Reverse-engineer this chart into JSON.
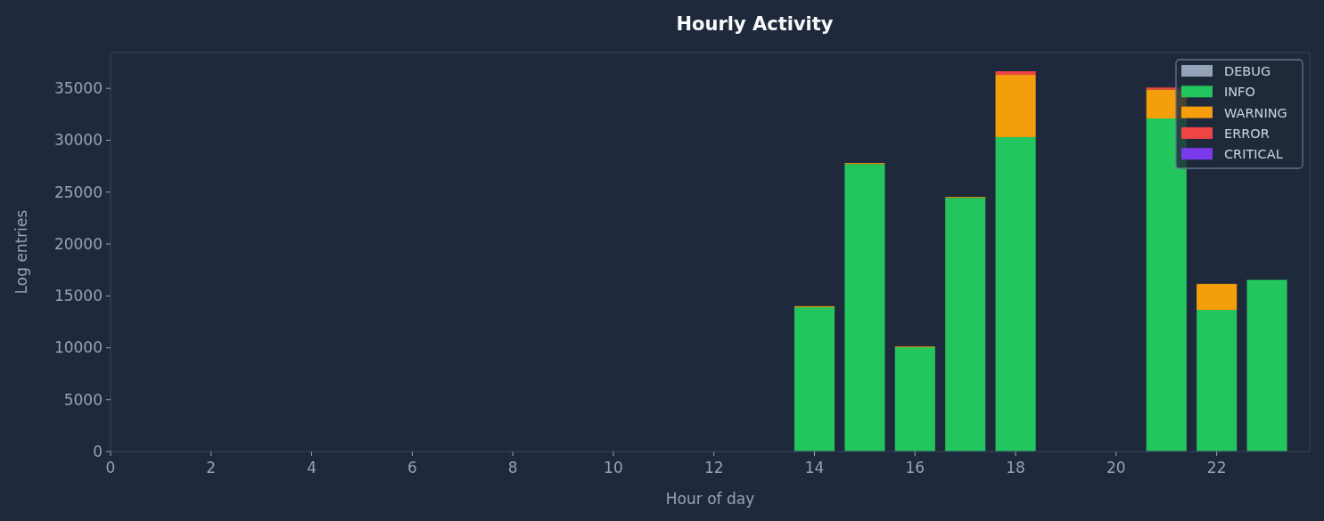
{
  "chart_data": {
    "type": "bar",
    "title": "Hourly Activity",
    "xlabel": "Hour of day",
    "ylabel": "Log entries",
    "stacked": true,
    "x": [
      14,
      15,
      16,
      17,
      18,
      21,
      22,
      23
    ],
    "series": [
      {
        "name": "DEBUG",
        "color": "#94a3b8",
        "values": [
          0,
          0,
          0,
          0,
          0,
          0,
          0,
          0
        ]
      },
      {
        "name": "INFO",
        "color": "#22c55e",
        "values": [
          13900,
          27700,
          10050,
          24450,
          30300,
          32100,
          13650,
          16550
        ]
      },
      {
        "name": "WARNING",
        "color": "#f59e0b",
        "values": [
          100,
          100,
          80,
          80,
          6000,
          2800,
          2500,
          0
        ]
      },
      {
        "name": "ERROR",
        "color": "#ef4444",
        "values": [
          0,
          0,
          0,
          0,
          350,
          180,
          0,
          0
        ]
      },
      {
        "name": "CRITICAL",
        "color": "#7c3aed",
        "values": [
          0,
          0,
          0,
          0,
          0,
          0,
          0,
          0
        ]
      }
    ],
    "xlim": [
      0,
      23.85
    ],
    "xticks": [
      0,
      2,
      4,
      6,
      8,
      10,
      12,
      14,
      16,
      18,
      20,
      22
    ],
    "ylim": [
      0,
      38450
    ],
    "yticks": [
      0,
      5000,
      10000,
      15000,
      20000,
      25000,
      30000,
      35000
    ],
    "grid": false,
    "legend": "top right"
  }
}
